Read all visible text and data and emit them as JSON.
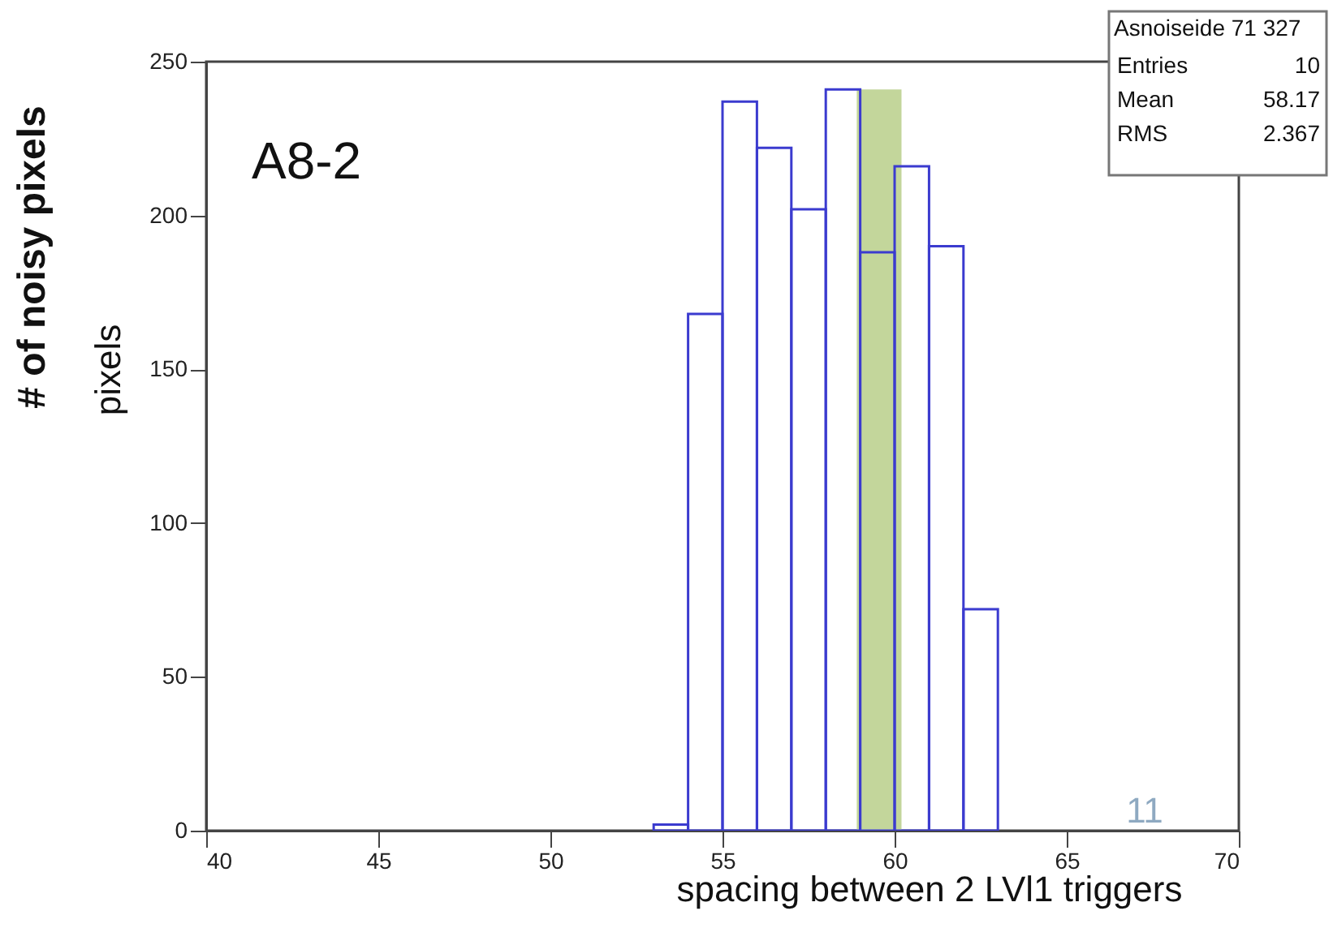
{
  "chart_data": {
    "type": "histogram",
    "xlabel": "spacing between 2 LVl1 triggers",
    "ylabel": "# of noisy pixels",
    "bins": [
      53,
      54,
      55,
      56,
      57,
      58,
      59,
      60,
      61,
      62,
      63
    ],
    "values": [
      2,
      168,
      237,
      222,
      202,
      241,
      188,
      216,
      190,
      72
    ],
    "color": "#3b3bcf",
    "xlim": [
      40,
      70
    ],
    "xticks": [
      40,
      45,
      50,
      55,
      60,
      65,
      70
    ],
    "ylim": [
      0,
      250
    ],
    "yticks": [
      0,
      50,
      100,
      150,
      200,
      250
    ],
    "bands": [
      {
        "axis": "x",
        "from": 58.9,
        "to": 60.2,
        "color": "#c3d69b"
      }
    ],
    "grid": false,
    "annotations": [
      "A8-2",
      "pixels",
      "Asnoiseide 71 327",
      "Entries",
      "10",
      "Mean",
      "58.17",
      "RMS",
      "2.367",
      "11"
    ]
  }
}
